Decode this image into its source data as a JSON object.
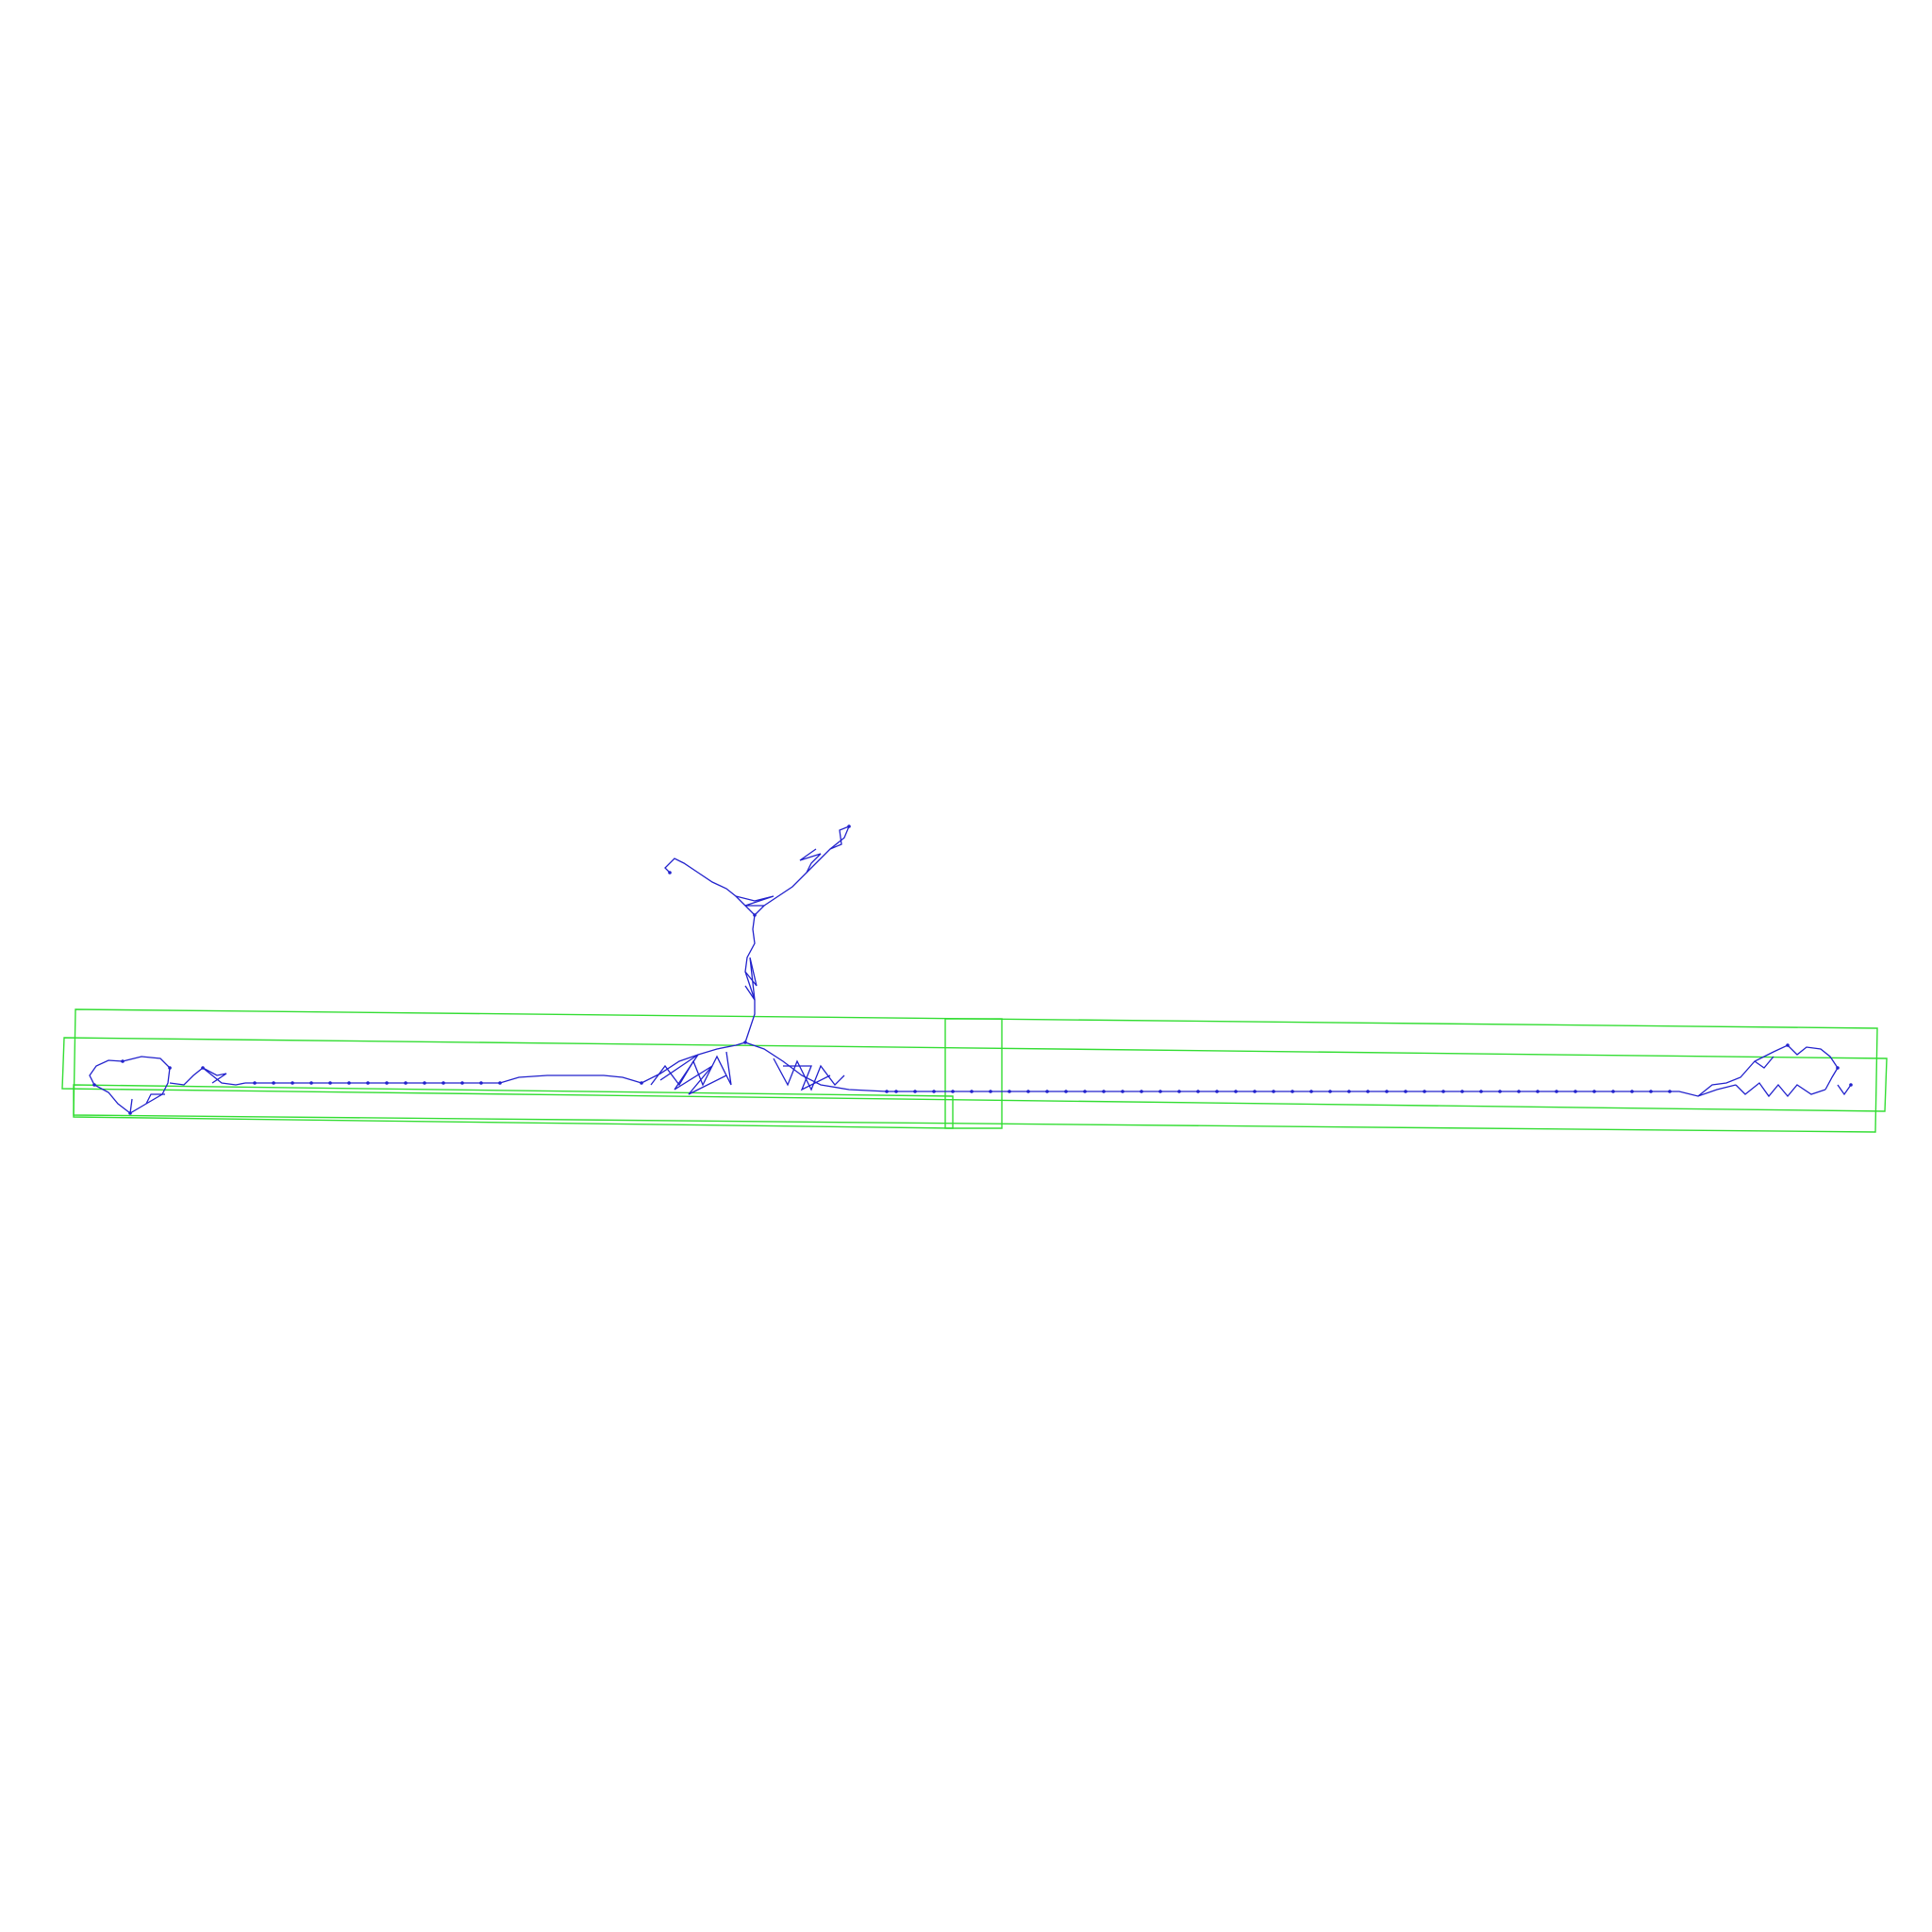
{
  "colors": {
    "background": "#ffffff",
    "bounding_boxes": "#33dd33",
    "graph": "#2222cc"
  }
}
